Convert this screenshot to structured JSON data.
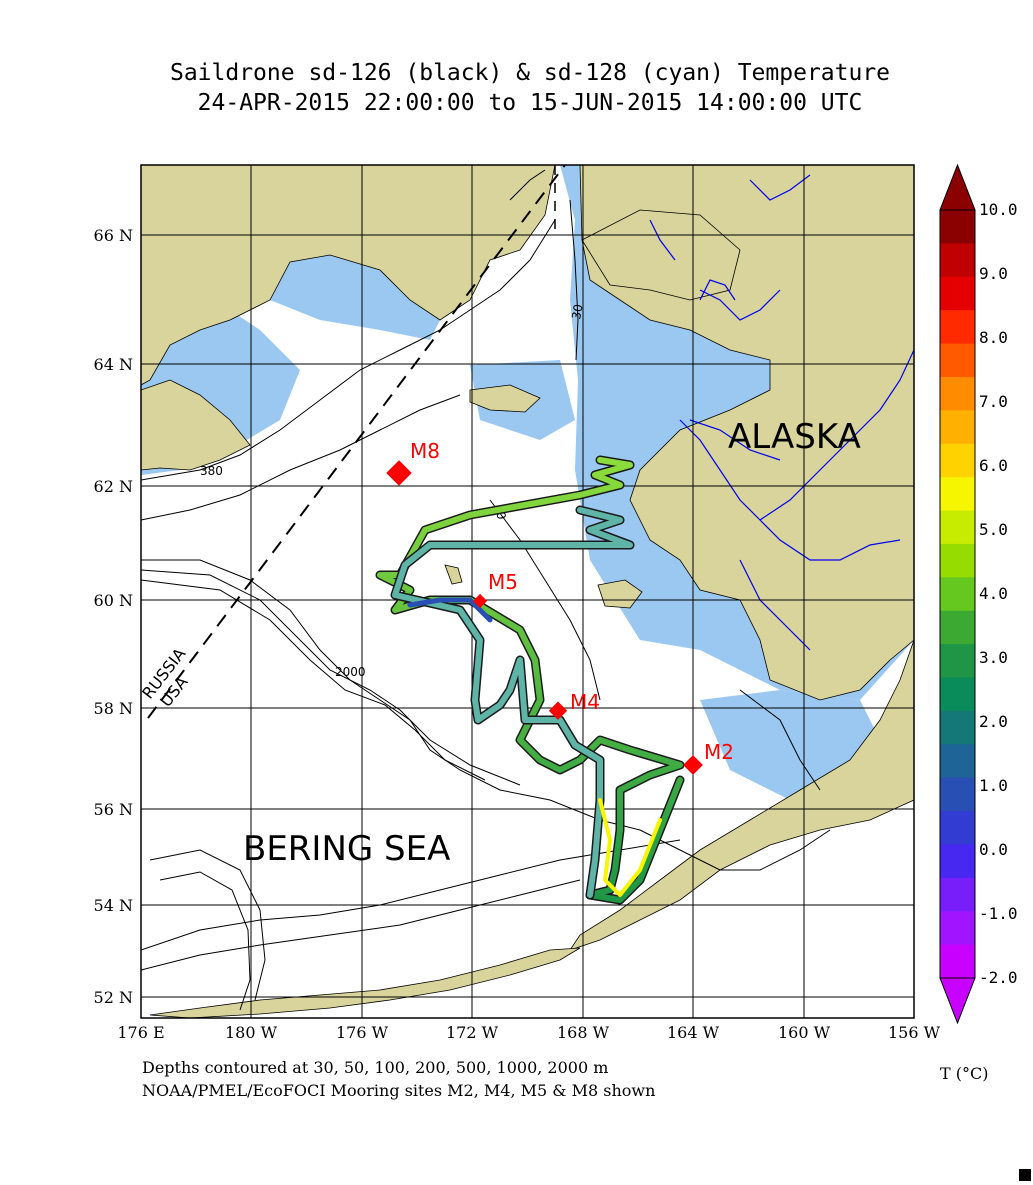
{
  "title": {
    "line1": "Saildrone sd-126 (black) & sd-128 (cyan) Temperature",
    "line2": "24-APR-2015 22:00:00 to 15-JUN-2015 14:00:00 UTC"
  },
  "axes": {
    "lat_labels": [
      "66 N",
      "64 N",
      "62 N",
      "60 N",
      "58 N",
      "56 N",
      "54 N",
      "52 N"
    ],
    "lon_labels": [
      "176 E",
      "180 W",
      "176 W",
      "172 W",
      "168 W",
      "164 W",
      "160 W",
      "156 W"
    ]
  },
  "map_labels": {
    "alaska": "ALASKA",
    "bering_sea": "BERING SEA",
    "russia": "RUSSIA",
    "usa": "USA",
    "contours": [
      "30",
      "380",
      "2000",
      "50"
    ]
  },
  "moorings": [
    {
      "name": "M8"
    },
    {
      "name": "M5"
    },
    {
      "name": "M4"
    },
    {
      "name": "M2"
    }
  ],
  "colorbar": {
    "units": "T (°C)",
    "labels": [
      "10.0",
      "9.0",
      "8.0",
      "7.0",
      "6.0",
      "5.0",
      "4.0",
      "3.0",
      "2.0",
      "1.0",
      "0.0",
      "-1.0",
      "-2.0"
    ],
    "colors": [
      "#8b0000",
      "#c00000",
      "#e50000",
      "#ff2a00",
      "#ff5a00",
      "#ff8c00",
      "#ffb000",
      "#ffd200",
      "#f6f600",
      "#c8ec00",
      "#96dc00",
      "#64c81e",
      "#3caa32",
      "#1e9646",
      "#0a8c5a",
      "#147878",
      "#1e6496",
      "#2850b4",
      "#323cd2",
      "#4628f0",
      "#781efa",
      "#a014ff",
      "#c800ff"
    ]
  },
  "footer": {
    "line1": "Depths contoured at 30, 50, 100, 200, 500, 1000, 2000 m",
    "line2": "NOAA/PMEL/EcoFOCI Mooring sites M2, M4, M5 & M8 shown"
  },
  "colors": {
    "land": "#d8d49c",
    "shallow_water": "#9bc8f0",
    "rivers": "#0000ee",
    "mooring": "#ff0000",
    "track_outer": "#1a1a1a"
  }
}
